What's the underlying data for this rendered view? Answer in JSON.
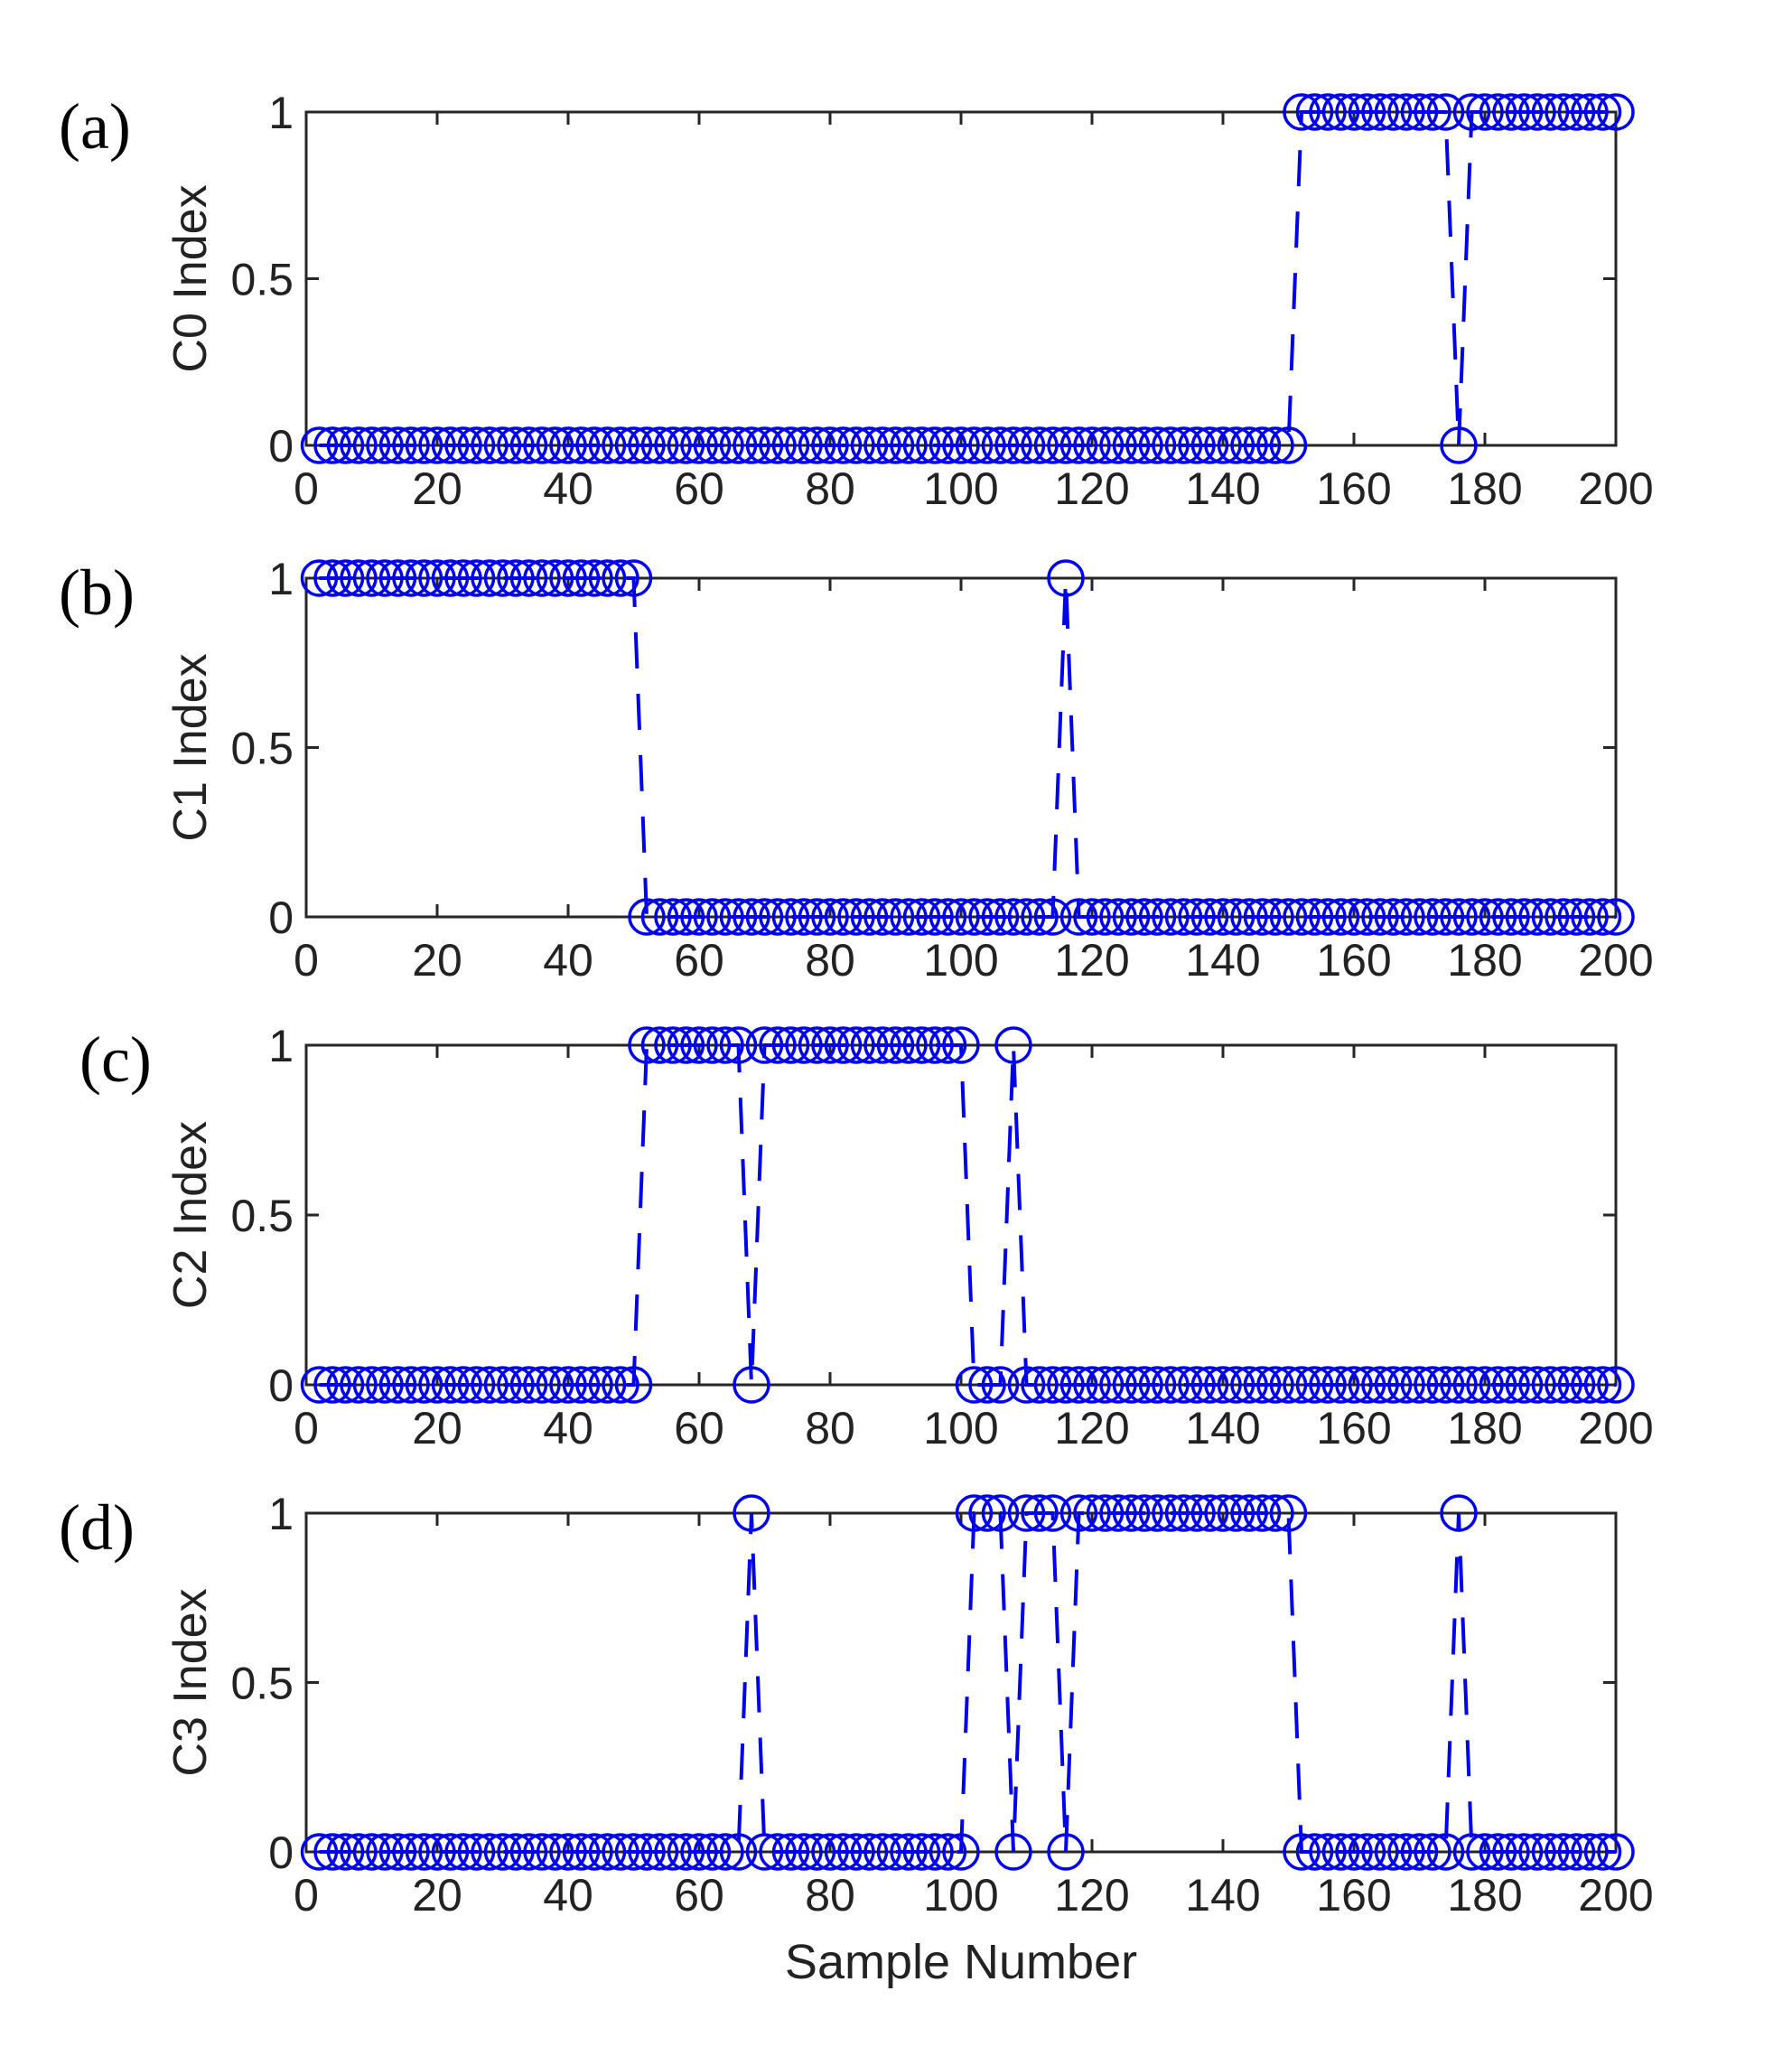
{
  "chart_data": [
    {
      "type": "line",
      "panel_label": "(a)",
      "ylabel": "C0 Index",
      "xlabel": "",
      "xlim": [
        0,
        200
      ],
      "ylim": [
        0,
        1
      ],
      "xticks": [
        "0",
        "20",
        "40",
        "60",
        "80",
        "100",
        "120",
        "140",
        "160",
        "180",
        "200"
      ],
      "yticks": [
        "0",
        "0.5",
        "1"
      ],
      "ones": [
        [
          152,
          174
        ],
        [
          178,
          200
        ]
      ]
    },
    {
      "type": "line",
      "panel_label": "(b)",
      "ylabel": "C1 Index",
      "xlabel": "",
      "xlim": [
        0,
        200
      ],
      "ylim": [
        0,
        1
      ],
      "xticks": [
        "0",
        "20",
        "40",
        "60",
        "80",
        "100",
        "120",
        "140",
        "160",
        "180",
        "200"
      ],
      "yticks": [
        "0",
        "0.5",
        "1"
      ],
      "ones": [
        [
          2,
          50
        ],
        [
          116,
          116
        ]
      ]
    },
    {
      "type": "line",
      "panel_label": "(c)",
      "ylabel": "C2 Index",
      "xlabel": "",
      "xlim": [
        0,
        200
      ],
      "ylim": [
        0,
        1
      ],
      "xticks": [
        "0",
        "20",
        "40",
        "60",
        "80",
        "100",
        "120",
        "140",
        "160",
        "180",
        "200"
      ],
      "yticks": [
        "0",
        "0.5",
        "1"
      ],
      "ones": [
        [
          52,
          66
        ],
        [
          70,
          100
        ],
        [
          108,
          108
        ]
      ]
    },
    {
      "type": "line",
      "panel_label": "(d)",
      "ylabel": "C3 Index",
      "xlabel": "Sample  Number",
      "xlim": [
        0,
        200
      ],
      "ylim": [
        0,
        1
      ],
      "xticks": [
        "0",
        "20",
        "40",
        "60",
        "80",
        "100",
        "120",
        "140",
        "160",
        "180",
        "200"
      ],
      "yticks": [
        "0",
        "0.5",
        "1"
      ],
      "ones": [
        [
          68,
          68
        ],
        [
          102,
          106
        ],
        [
          110,
          114
        ],
        [
          118,
          150
        ],
        [
          176,
          176
        ]
      ]
    }
  ],
  "sample_x": {
    "start": 2,
    "end": 200,
    "step": 2
  },
  "colors": {
    "series": "#0000ee",
    "axis": "#262626"
  }
}
